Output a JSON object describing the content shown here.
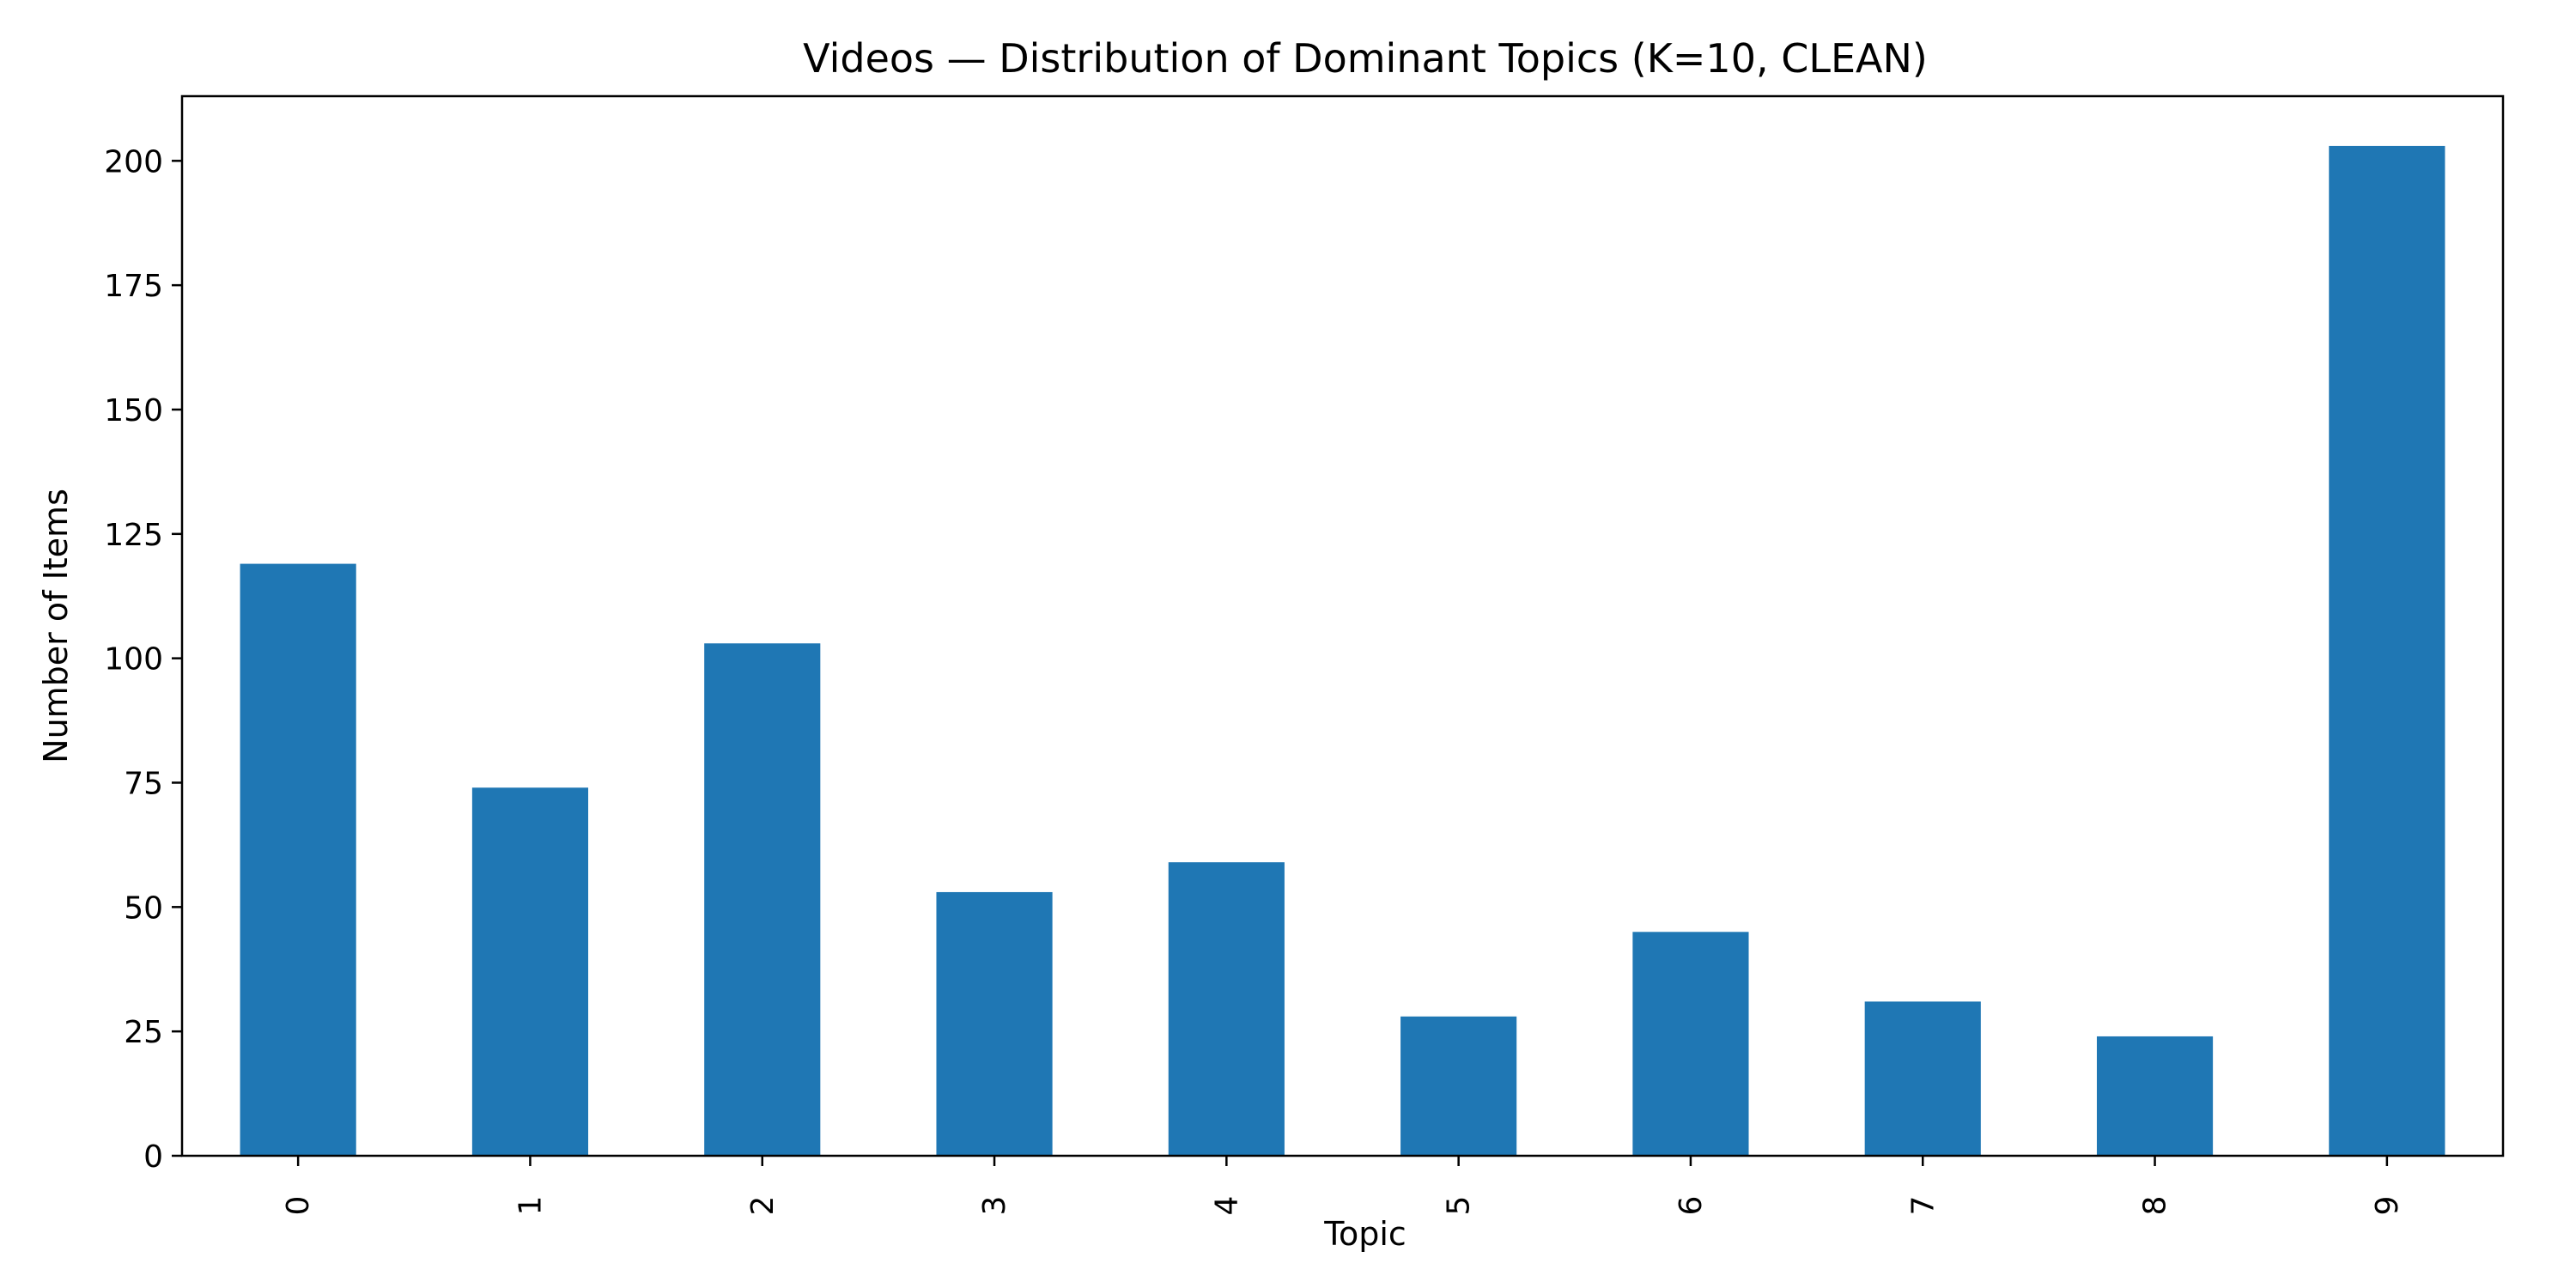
{
  "chart_data": {
    "type": "bar",
    "title": "Videos — Distribution of Dominant Topics (K=10, CLEAN)",
    "xlabel": "Topic",
    "ylabel": "Number of Items",
    "categories": [
      "0",
      "1",
      "2",
      "3",
      "4",
      "5",
      "6",
      "7",
      "8",
      "9"
    ],
    "values": [
      119,
      74,
      103,
      53,
      59,
      28,
      45,
      31,
      24,
      203
    ],
    "ylim": [
      0,
      213
    ],
    "yticks": [
      0,
      25,
      50,
      75,
      100,
      125,
      150,
      175,
      200
    ],
    "grid": false,
    "legend": "none",
    "x_tick_rotation": "vertical",
    "bar_color": "#1f77b4"
  }
}
